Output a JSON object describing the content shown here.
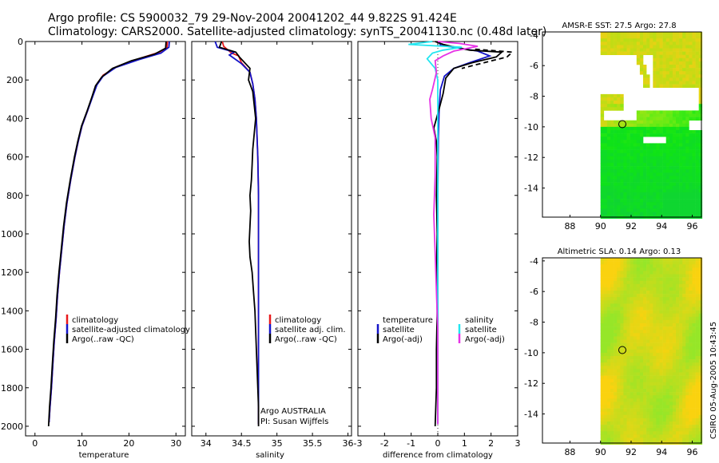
{
  "header": {
    "line1": "Argo profile: CS 5900032_79 29-Nov-2004 20041202_44 9.822S 91.424E",
    "line2": "Climatology: CARS2000. Satellite-adjusted climatology: synTS_20041130.nc (0.48d later)"
  },
  "side_label": "CSIRO 05-Aug-2005 10:43:45",
  "colors": {
    "red": "#e8191c",
    "blue": "#1414c8",
    "black": "#000000",
    "cyan": "#22e6f0",
    "magenta": "#e633e6"
  },
  "chart_data": [
    {
      "type": "line",
      "name": "temperature-panel",
      "xlabel": "temperature",
      "xlim": [
        -2,
        32
      ],
      "ylim": [
        2050,
        0
      ],
      "xticks": [
        0,
        10,
        20,
        30
      ],
      "yticks": [
        0,
        200,
        400,
        600,
        800,
        1000,
        1200,
        1400,
        1600,
        1800,
        2000
      ],
      "legend": [
        "climatology",
        "satellite-adjusted climatology",
        "Argo(..raw -QC)"
      ],
      "series": [
        {
          "name": "climatology",
          "color": "red",
          "points": [
            [
              28.2,
              0
            ],
            [
              28.1,
              30
            ],
            [
              26.5,
              55
            ],
            [
              22,
              90
            ],
            [
              17.5,
              130
            ],
            [
              14.5,
              175
            ],
            [
              13.2,
              220
            ],
            [
              12.3,
              280
            ],
            [
              11.2,
              360
            ],
            [
              10,
              440
            ],
            [
              9.2,
              520
            ],
            [
              8.5,
              600
            ],
            [
              7.6,
              720
            ],
            [
              6.8,
              840
            ],
            [
              6.2,
              960
            ],
            [
              5.7,
              1080
            ],
            [
              5.2,
              1200
            ],
            [
              4.8,
              1320
            ],
            [
              4.5,
              1440
            ],
            [
              4.1,
              1560
            ],
            [
              3.8,
              1680
            ],
            [
              3.5,
              1800
            ],
            [
              3.2,
              1900
            ],
            [
              3,
              1980
            ]
          ]
        },
        {
          "name": "satellite-adjusted",
          "color": "blue",
          "points": [
            [
              28.6,
              0
            ],
            [
              28.5,
              30
            ],
            [
              26.8,
              60
            ],
            [
              22,
              95
            ],
            [
              17.2,
              135
            ],
            [
              14.5,
              180
            ],
            [
              13.2,
              225
            ],
            [
              12.3,
              285
            ],
            [
              11.2,
              360
            ],
            [
              10,
              440
            ],
            [
              9.2,
              520
            ],
            [
              8.5,
              600
            ],
            [
              7.6,
              720
            ],
            [
              6.8,
              840
            ],
            [
              6.2,
              960
            ],
            [
              5.7,
              1080
            ],
            [
              5.2,
              1200
            ],
            [
              4.8,
              1320
            ],
            [
              4.5,
              1440
            ],
            [
              4.1,
              1560
            ],
            [
              3.8,
              1680
            ],
            [
              3.5,
              1800
            ],
            [
              3.2,
              1900
            ],
            [
              3,
              1980
            ]
          ]
        },
        {
          "name": "Argo",
          "color": "black",
          "points": [
            [
              27.9,
              0
            ],
            [
              27.8,
              35
            ],
            [
              25.5,
              65
            ],
            [
              20.5,
              100
            ],
            [
              16.5,
              140
            ],
            [
              14.2,
              185
            ],
            [
              12.9,
              230
            ],
            [
              12.1,
              290
            ],
            [
              11.1,
              360
            ],
            [
              9.9,
              440
            ],
            [
              9.1,
              520
            ],
            [
              8.4,
              600
            ],
            [
              7.5,
              720
            ],
            [
              6.7,
              840
            ],
            [
              6.1,
              960
            ],
            [
              5.6,
              1080
            ],
            [
              5.1,
              1200
            ],
            [
              4.7,
              1320
            ],
            [
              4.4,
              1440
            ],
            [
              4,
              1560
            ],
            [
              3.7,
              1680
            ],
            [
              3.4,
              1800
            ],
            [
              3.1,
              1900
            ],
            [
              2.9,
              2000
            ]
          ]
        }
      ]
    },
    {
      "type": "line",
      "name": "salinity-panel",
      "xlabel": "salinity",
      "xlim": [
        33.8,
        36.05
      ],
      "ylim": [
        2050,
        0
      ],
      "xticks": [
        34,
        34.5,
        35,
        35.5,
        36
      ],
      "legend": [
        "climatology",
        "satellite adj. clim.",
        "Argo(..raw -QC)"
      ],
      "annotation1": "Argo AUSTRALIA",
      "annotation2": "PI: Susan Wijffels",
      "series": [
        {
          "name": "climatology",
          "color": "red",
          "points": [
            [
              34.23,
              0
            ],
            [
              34.25,
              25
            ],
            [
              34.36,
              60
            ],
            [
              34.46,
              75
            ],
            [
              34.5,
              110
            ],
            [
              34.62,
              160
            ],
            [
              34.66,
              220
            ],
            [
              34.69,
              300
            ],
            [
              34.71,
              400
            ],
            [
              34.72,
              500
            ],
            [
              34.73,
              600
            ],
            [
              34.74,
              800
            ],
            [
              34.74,
              1000
            ],
            [
              34.74,
              1200
            ],
            [
              34.74,
              1400
            ],
            [
              34.74,
              1600
            ],
            [
              34.74,
              1800
            ],
            [
              34.74,
              1990
            ]
          ]
        },
        {
          "name": "satellite-adjusted",
          "color": "blue",
          "points": [
            [
              34.13,
              0
            ],
            [
              34.16,
              30
            ],
            [
              34.4,
              55
            ],
            [
              34.33,
              70
            ],
            [
              34.5,
              115
            ],
            [
              34.62,
              160
            ],
            [
              34.66,
              220
            ],
            [
              34.69,
              300
            ],
            [
              34.71,
              400
            ],
            [
              34.72,
              500
            ],
            [
              34.73,
              600
            ],
            [
              34.74,
              800
            ],
            [
              34.74,
              1000
            ],
            [
              34.74,
              1200
            ],
            [
              34.74,
              1400
            ],
            [
              34.74,
              1600
            ],
            [
              34.74,
              1800
            ],
            [
              34.74,
              1990
            ]
          ]
        },
        {
          "name": "Argo",
          "color": "black",
          "points": [
            [
              34.22,
              0
            ],
            [
              34.19,
              30
            ],
            [
              34.42,
              55
            ],
            [
              34.47,
              80
            ],
            [
              34.62,
              140
            ],
            [
              34.6,
              200
            ],
            [
              34.66,
              260
            ],
            [
              34.68,
              330
            ],
            [
              34.7,
              400
            ],
            [
              34.68,
              480
            ],
            [
              34.66,
              560
            ],
            [
              34.65,
              640
            ],
            [
              34.64,
              720
            ],
            [
              34.62,
              800
            ],
            [
              34.63,
              880
            ],
            [
              34.62,
              960
            ],
            [
              34.61,
              1040
            ],
            [
              34.62,
              1120
            ],
            [
              34.65,
              1200
            ],
            [
              34.67,
              1300
            ],
            [
              34.69,
              1400
            ],
            [
              34.7,
              1500
            ],
            [
              34.71,
              1600
            ],
            [
              34.72,
              1700
            ],
            [
              34.73,
              1800
            ],
            [
              34.74,
              1900
            ],
            [
              34.74,
              2000
            ]
          ]
        }
      ]
    },
    {
      "type": "line",
      "name": "difference-panel",
      "xlabel": "difference from climatology",
      "xlim": [
        -3,
        3
      ],
      "ylim": [
        2050,
        0
      ],
      "xticks": [
        -3,
        -2,
        -1,
        0,
        1,
        2,
        3
      ],
      "legend_left_title": "temperature",
      "legend_left": [
        "satellite",
        "Argo(-adj)"
      ],
      "legend_right_title": "salinity",
      "legend_right": [
        "satellite",
        "Argo(-adj)"
      ],
      "series": [
        {
          "name": "temperature satellite",
          "color": "blue",
          "points": [
            [
              0.05,
              0
            ],
            [
              0.1,
              20
            ],
            [
              0.6,
              30
            ],
            [
              1.5,
              50
            ],
            [
              1.95,
              75
            ],
            [
              1.2,
              110
            ],
            [
              0.6,
              140
            ],
            [
              0.25,
              180
            ],
            [
              0.1,
              250
            ],
            [
              0.05,
              350
            ],
            [
              0.02,
              500
            ],
            [
              0,
              800
            ],
            [
              0,
              1200
            ],
            [
              0,
              1600
            ],
            [
              0,
              1990
            ]
          ]
        },
        {
          "name": "temperature Argo",
          "color": "black",
          "points": [
            [
              -0.1,
              0
            ],
            [
              0.2,
              15
            ],
            [
              0.5,
              25
            ],
            [
              1.2,
              45
            ],
            [
              2.4,
              55
            ],
            [
              2.2,
              80
            ],
            [
              1.3,
              110
            ],
            [
              0.6,
              140
            ],
            [
              0.3,
              190
            ],
            [
              0.2,
              270
            ],
            [
              0.05,
              350
            ],
            [
              -0.15,
              450
            ],
            [
              -0.05,
              520
            ],
            [
              -0.02,
              600
            ],
            [
              -0.05,
              800
            ],
            [
              -0.02,
              1000
            ],
            [
              -0.05,
              1200
            ],
            [
              -0.02,
              1400
            ],
            [
              -0.05,
              1600
            ],
            [
              -0.05,
              1800
            ],
            [
              -0.1,
              2000
            ]
          ]
        },
        {
          "name": "temperature Argo dashed",
          "color": "black",
          "dashed": true,
          "points": [
            [
              1.4,
              40
            ],
            [
              2.8,
              55
            ],
            [
              2.6,
              80
            ],
            [
              1.6,
              115
            ],
            [
              0.9,
              140
            ]
          ]
        },
        {
          "name": "salinity satellite",
          "color": "cyan",
          "points": [
            [
              -0.2,
              0
            ],
            [
              -1.1,
              15
            ],
            [
              0.9,
              30
            ],
            [
              0.2,
              45
            ],
            [
              -0.2,
              60
            ],
            [
              -0.4,
              90
            ],
            [
              -0.1,
              140
            ],
            [
              0,
              200
            ],
            [
              0,
              400
            ],
            [
              0,
              600
            ],
            [
              0,
              800
            ],
            [
              0,
              1000
            ],
            [
              0,
              1200
            ],
            [
              0,
              1400
            ],
            [
              0,
              1600
            ],
            [
              0,
              1800
            ],
            [
              0,
              1990
            ]
          ]
        },
        {
          "name": "salinity Argo",
          "color": "magenta",
          "points": [
            [
              0,
              0
            ],
            [
              0.8,
              10
            ],
            [
              1.5,
              25
            ],
            [
              0.6,
              50
            ],
            [
              0.2,
              75
            ],
            [
              -0.1,
              100
            ],
            [
              -0.05,
              160
            ],
            [
              -0.2,
              250
            ],
            [
              -0.3,
              300
            ],
            [
              -0.25,
              400
            ],
            [
              -0.1,
              500
            ],
            [
              -0.1,
              700
            ],
            [
              -0.15,
              900
            ],
            [
              -0.1,
              1100
            ],
            [
              -0.05,
              1300
            ],
            [
              0,
              1500
            ],
            [
              0,
              1700
            ],
            [
              0,
              1900
            ],
            [
              0,
              1990
            ]
          ]
        }
      ]
    },
    {
      "type": "heatmap",
      "name": "sst-map",
      "title": "AMSR-E SST: 27.5 Argo: 27.8",
      "xlim": [
        86.2,
        96.6
      ],
      "ylim": [
        -15.9,
        -3.8
      ],
      "xticks": [
        88,
        90,
        92,
        94,
        96
      ],
      "yticks": [
        -4,
        -6,
        -8,
        -10,
        -12,
        -14
      ],
      "data_x_range": [
        90,
        96.6
      ],
      "argo_position": [
        91.424,
        -9.822
      ]
    },
    {
      "type": "heatmap",
      "name": "sla-map",
      "title": "Altimetric SLA: 0.14 Argo: 0.13",
      "xlim": [
        86.2,
        96.6
      ],
      "ylim": [
        -15.9,
        -3.8
      ],
      "xticks": [
        88,
        90,
        92,
        94,
        96
      ],
      "yticks": [
        -4,
        -6,
        -8,
        -10,
        -12,
        -14
      ],
      "data_x_range": [
        90,
        96.6
      ],
      "argo_position": [
        91.424,
        -9.822
      ]
    }
  ]
}
